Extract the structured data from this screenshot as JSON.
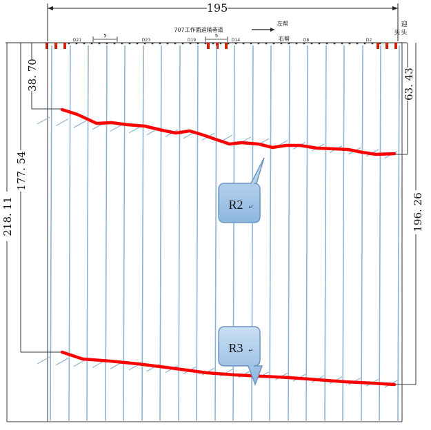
{
  "diagram": {
    "top_dimension": "195",
    "airway_title": "707工作面运输巷道",
    "left_side_label": "左帮",
    "right_side_label": "右帮",
    "end_label": "头",
    "end_label_2": "迎",
    "end_label_3": "头",
    "spacing_label": "5",
    "drill_labels": [
      "D21",
      "D23",
      "D19",
      "D14",
      "D8",
      "D2"
    ],
    "dim_left_r2_start": "38. 70",
    "dim_right_r2_end": "63. 43",
    "dim_left_r3_start": "177. 54",
    "dim_outer_left": "218. 11",
    "dim_right_r3_end": "196. 26",
    "callout_r2": "R2",
    "callout_r3": "R3",
    "callout_mark": "↵",
    "colors": {
      "line_red": "#ff0000",
      "borehole_blue": "#8fb3d3",
      "callout_fill": "#9ec3e6",
      "callout_stroke": "#6f95be",
      "frame": "#333333"
    }
  }
}
